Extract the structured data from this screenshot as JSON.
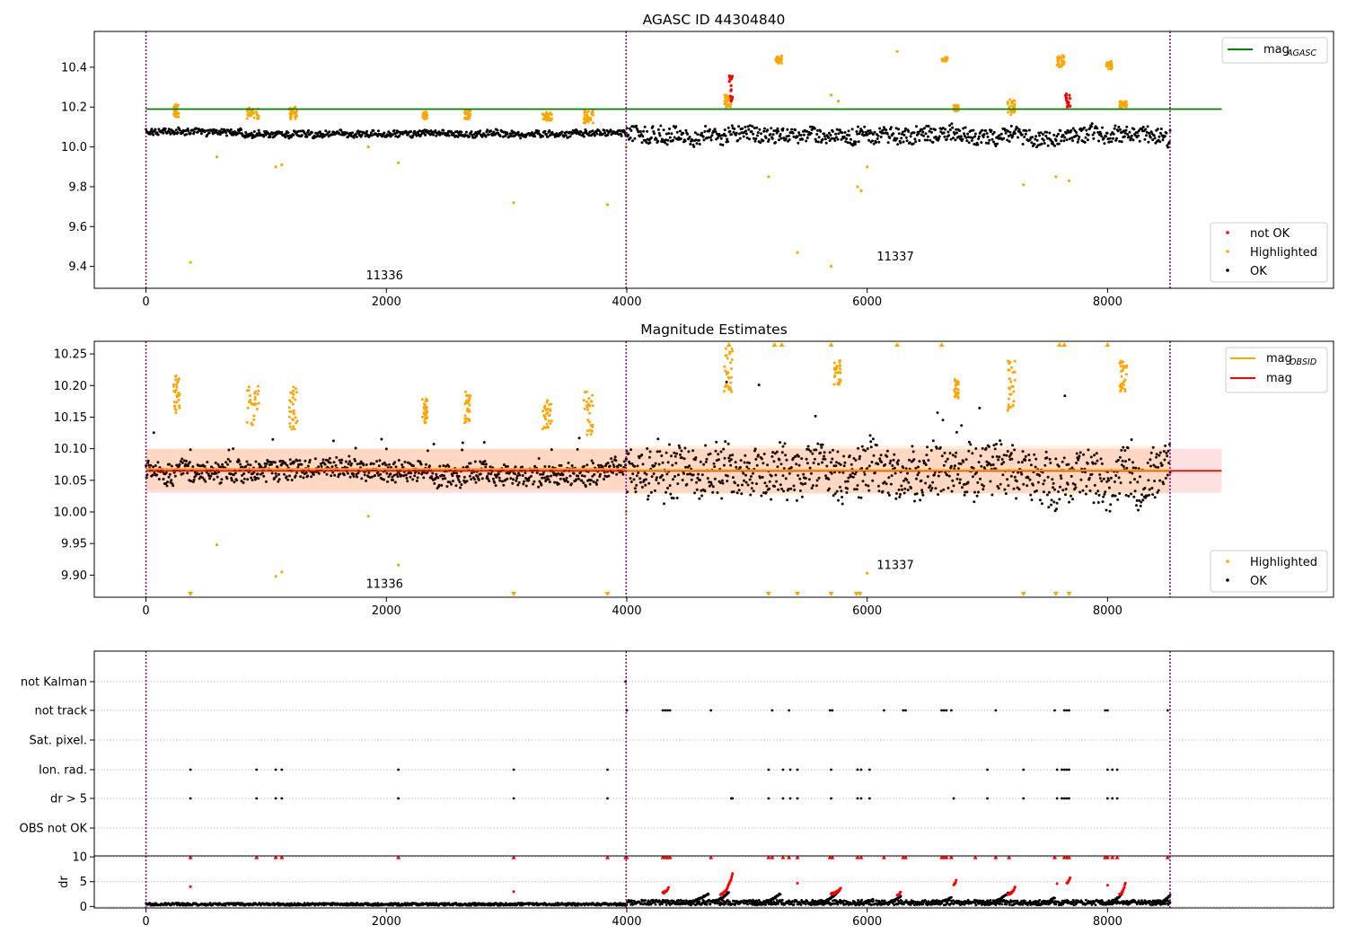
{
  "figure": {
    "panel1_title": "AGASC ID 44304840",
    "panel2_title": "Magnitude Estimates"
  },
  "colors": {
    "ok": "#000000",
    "highlighted": "#ffa500",
    "not_ok": "#ff0000",
    "agasc_line": "#008000",
    "obsid_line": "#ffa500",
    "mag_line": "#ff0000",
    "obs_boundary": "#800080"
  },
  "chart_data": [
    {
      "type": "scatter",
      "title": "AGASC ID 44304840",
      "xlabel": "",
      "ylabel": "",
      "xlim": [
        -430,
        9880
      ],
      "ylim": [
        9.29,
        10.58
      ],
      "xticks": [
        0,
        2000,
        4000,
        6000,
        8000
      ],
      "yticks": [
        9.4,
        9.6,
        9.8,
        10.0,
        10.2,
        10.4
      ],
      "ytick_labels": [
        "9.4",
        "9.6",
        "9.8",
        "10.0",
        "10.2",
        "10.4"
      ],
      "grid": false,
      "legend_lines": {
        "placement": "top-right",
        "entries": [
          {
            "label": "mag",
            "subscript": "AGASC",
            "color": "#008000"
          }
        ]
      },
      "legend_markers": {
        "placement": "bottom-right",
        "entries": [
          {
            "label": "not OK",
            "color": "#ff0000"
          },
          {
            "label": "Highlighted",
            "color": "#ffa500"
          },
          {
            "label": "OK",
            "color": "#000000"
          }
        ]
      },
      "reference_line": {
        "name": "mag_AGASC",
        "y": 10.19,
        "x_range": [
          0,
          8950
        ]
      },
      "obs_boundaries": [
        0,
        3995,
        8520
      ],
      "obsid_annotations": [
        {
          "text": "11336",
          "x": 1830,
          "y": 9.335
        },
        {
          "text": "11337",
          "x": 6080,
          "y": 9.43
        }
      ],
      "ok_segments": [
        {
          "x": [
            0,
            800
          ],
          "level": 10.075,
          "amp": 0.02
        },
        {
          "x": [
            800,
            2000
          ],
          "level": 10.065,
          "amp": 0.02
        },
        {
          "x": [
            2000,
            3995
          ],
          "level": 10.065,
          "amp": 0.02
        },
        {
          "x": [
            3995,
            5300
          ],
          "level": 10.06,
          "amp": 0.05
        },
        {
          "x": [
            5300,
            7200
          ],
          "level": 10.06,
          "amp": 0.05
        },
        {
          "x": [
            7200,
            8520
          ],
          "level": 10.06,
          "amp": 0.05
        }
      ],
      "highlighted_clusters": [
        {
          "x": [
            230,
            280
          ],
          "y": [
            10.15,
            10.22
          ]
        },
        {
          "x": [
            840,
            940
          ],
          "y": [
            10.14,
            10.2
          ]
        },
        {
          "x": [
            1190,
            1260
          ],
          "y": [
            10.14,
            10.2
          ]
        },
        {
          "x": [
            2300,
            2340
          ],
          "y": [
            10.14,
            10.18
          ]
        },
        {
          "x": [
            2650,
            2700
          ],
          "y": [
            10.14,
            10.19
          ]
        },
        {
          "x": [
            3300,
            3380
          ],
          "y": [
            10.13,
            10.18
          ]
        },
        {
          "x": [
            3640,
            3720
          ],
          "y": [
            10.12,
            10.19
          ]
        },
        {
          "x": [
            4810,
            4880
          ],
          "y": [
            10.2,
            10.26
          ]
        },
        {
          "x": [
            5240,
            5290
          ],
          "y": [
            10.42,
            10.46
          ]
        },
        {
          "x": [
            6620,
            6670
          ],
          "y": [
            10.43,
            10.45
          ]
        },
        {
          "x": [
            6720,
            6760
          ],
          "y": [
            10.18,
            10.21
          ]
        },
        {
          "x": [
            7170,
            7230
          ],
          "y": [
            10.16,
            10.24
          ]
        },
        {
          "x": [
            7580,
            7640
          ],
          "y": [
            10.4,
            10.46
          ]
        },
        {
          "x": [
            7990,
            8040
          ],
          "y": [
            10.39,
            10.43
          ]
        },
        {
          "x": [
            8100,
            8160
          ],
          "y": [
            10.2,
            10.23
          ]
        }
      ],
      "highlighted_points": [
        {
          "x": 370,
          "y": 9.42
        },
        {
          "x": 590,
          "y": 9.95
        },
        {
          "x": 1080,
          "y": 9.9
        },
        {
          "x": 1130,
          "y": 9.91
        },
        {
          "x": 1850,
          "y": 10.0
        },
        {
          "x": 2100,
          "y": 9.92
        },
        {
          "x": 3060,
          "y": 9.72
        },
        {
          "x": 3840,
          "y": 9.71
        },
        {
          "x": 3995,
          "y": 10.0
        },
        {
          "x": 5180,
          "y": 9.85
        },
        {
          "x": 5420,
          "y": 9.47
        },
        {
          "x": 5700,
          "y": 10.26
        },
        {
          "x": 5700,
          "y": 9.4
        },
        {
          "x": 5760,
          "y": 10.23
        },
        {
          "x": 5920,
          "y": 9.8
        },
        {
          "x": 5950,
          "y": 9.78
        },
        {
          "x": 6000,
          "y": 9.9
        },
        {
          "x": 6250,
          "y": 10.48
        },
        {
          "x": 7300,
          "y": 9.81
        },
        {
          "x": 7570,
          "y": 9.85
        },
        {
          "x": 7680,
          "y": 9.83
        }
      ],
      "not_ok_clusters": [
        {
          "x": [
            4850,
            4880
          ],
          "y": [
            10.22,
            10.37
          ]
        },
        {
          "x": [
            7650,
            7690
          ],
          "y": [
            10.2,
            10.27
          ]
        }
      ]
    },
    {
      "type": "scatter",
      "title": "Magnitude Estimates",
      "xlabel": "",
      "ylabel": "",
      "xlim": [
        -430,
        9880
      ],
      "ylim": [
        9.865,
        10.27
      ],
      "xticks": [
        0,
        2000,
        4000,
        6000,
        8000
      ],
      "yticks": [
        9.9,
        9.95,
        10.0,
        10.05,
        10.1,
        10.15,
        10.2,
        10.25
      ],
      "ytick_labels": [
        "9.90",
        "9.95",
        "10.00",
        "10.05",
        "10.10",
        "10.15",
        "10.20",
        "10.25"
      ],
      "grid": false,
      "legend_lines": {
        "placement": "top-right",
        "entries": [
          {
            "label": "mag",
            "subscript": "OBSID",
            "color": "#ffa500"
          },
          {
            "label": "mag",
            "subscript": "",
            "color": "#ff0000"
          }
        ]
      },
      "legend_markers": {
        "placement": "bottom-right",
        "entries": [
          {
            "label": "Highlighted",
            "color": "#ffa500"
          },
          {
            "label": "OK",
            "color": "#000000"
          }
        ]
      },
      "mag_line": {
        "y": 10.065,
        "band": [
          10.03,
          10.1
        ],
        "x_range": [
          0,
          8950
        ],
        "color": "#ff0000"
      },
      "obsid_lines": [
        {
          "x_range": [
            0,
            3995
          ],
          "y": 10.068,
          "band": [
            10.035,
            10.1
          ]
        },
        {
          "x_range": [
            3995,
            8520
          ],
          "y": 10.066,
          "band": [
            10.028,
            10.105
          ]
        }
      ],
      "obs_boundaries": [
        0,
        3995,
        8520
      ],
      "obsid_annotations": [
        {
          "text": "11336",
          "x": 1830,
          "y": 9.88
        },
        {
          "text": "11337",
          "x": 6080,
          "y": 9.91
        }
      ],
      "ok_segments": [
        {
          "x": [
            0,
            800
          ],
          "level": 10.065,
          "amp": 0.02
        },
        {
          "x": [
            800,
            2000
          ],
          "level": 10.065,
          "amp": 0.02
        },
        {
          "x": [
            2000,
            3995
          ],
          "level": 10.06,
          "amp": 0.02
        },
        {
          "x": [
            3995,
            5300
          ],
          "level": 10.06,
          "amp": 0.05
        },
        {
          "x": [
            5300,
            7200
          ],
          "level": 10.06,
          "amp": 0.05
        },
        {
          "x": [
            7200,
            8520
          ],
          "level": 10.06,
          "amp": 0.05
        }
      ],
      "highlighted_clusters": [
        {
          "x": [
            230,
            280
          ],
          "y": [
            10.15,
            10.22
          ]
        },
        {
          "x": [
            840,
            940
          ],
          "y": [
            10.13,
            10.2
          ]
        },
        {
          "x": [
            1190,
            1260
          ],
          "y": [
            10.13,
            10.2
          ]
        },
        {
          "x": [
            2300,
            2340
          ],
          "y": [
            10.14,
            10.18
          ]
        },
        {
          "x": [
            2650,
            2700
          ],
          "y": [
            10.14,
            10.19
          ]
        },
        {
          "x": [
            3300,
            3380
          ],
          "y": [
            10.13,
            10.18
          ]
        },
        {
          "x": [
            3640,
            3720
          ],
          "y": [
            10.12,
            10.19
          ]
        },
        {
          "x": [
            4810,
            4880
          ],
          "y": [
            10.19,
            10.26
          ]
        },
        {
          "x": [
            5720,
            5780
          ],
          "y": [
            10.2,
            10.24
          ]
        },
        {
          "x": [
            6720,
            6760
          ],
          "y": [
            10.18,
            10.21
          ]
        },
        {
          "x": [
            7170,
            7230
          ],
          "y": [
            10.16,
            10.24
          ]
        },
        {
          "x": [
            8100,
            8160
          ],
          "y": [
            10.19,
            10.24
          ]
        }
      ],
      "highlighted_points": [
        {
          "x": 590,
          "y": 9.948
        },
        {
          "x": 1080,
          "y": 9.898
        },
        {
          "x": 1130,
          "y": 9.905
        },
        {
          "x": 1850,
          "y": 9.993
        },
        {
          "x": 2100,
          "y": 9.916
        },
        {
          "x": 3995,
          "y": 10.0
        },
        {
          "x": 6000,
          "y": 9.903
        }
      ],
      "highlighted_offscale_top_x": [
        4850,
        5230,
        5290,
        5700,
        6250,
        6620,
        7600,
        7640,
        8000
      ],
      "highlighted_offscale_bottom_x": [
        370,
        3060,
        3840,
        5180,
        5420,
        5700,
        5910,
        5940,
        7300,
        7570,
        7680
      ]
    },
    {
      "type": "scatter",
      "title": "",
      "xlabel": "",
      "ylabel": "",
      "xlim": [
        -430,
        9880
      ],
      "categories": [
        "not Kalman",
        "not track",
        "Sat. pixel.",
        "Ion. rad.",
        "dr > 5",
        "OBS not OK"
      ],
      "grid": true,
      "obs_boundaries": [
        0,
        3995,
        8520
      ],
      "flags": {
        "not Kalman": [
          3990
        ],
        "not track": [
          4000,
          4300,
          4320,
          4340,
          4360,
          4700,
          5210,
          5350,
          5690,
          5710,
          6140,
          6300,
          6320,
          6620,
          6640,
          6660,
          6700,
          7070,
          7560,
          7640,
          7660,
          7680,
          7980,
          8000,
          8500
        ],
        "Sat. pixel.": [],
        "Ion. rad.": [
          370,
          920,
          1080,
          1130,
          2100,
          3060,
          3840,
          5180,
          5300,
          5360,
          5420,
          5700,
          5920,
          5950,
          6020,
          7000,
          7300,
          7580,
          7620,
          7640,
          7660,
          7680,
          8000,
          8040,
          8080
        ],
        "dr > 5": [
          370,
          920,
          1080,
          1130,
          2100,
          3060,
          3840,
          4870,
          4880,
          5180,
          5300,
          5360,
          5420,
          5700,
          5920,
          5950,
          6020,
          6720,
          7000,
          7300,
          7580,
          7620,
          7640,
          7660,
          7680,
          8000,
          8040,
          8080
        ],
        "OBS not OK": []
      }
    },
    {
      "type": "scatter",
      "title": "",
      "xlabel": "",
      "ylabel": "dr",
      "xlim": [
        -430,
        9880
      ],
      "ylim": [
        -0.3,
        10.2
      ],
      "xticks": [
        0,
        2000,
        4000,
        6000,
        8000
      ],
      "yticks": [
        0,
        5,
        10
      ],
      "ytick_labels": [
        "0",
        "5",
        "10"
      ],
      "grid": true,
      "obs_boundaries": [
        0,
        3995,
        8520
      ],
      "baseline_segments": [
        {
          "x": [
            0,
            3995
          ],
          "level": 0.45,
          "amp": 0.25
        },
        {
          "x": [
            3995,
            8520
          ],
          "level": 0.8,
          "amp": 0.5
        }
      ],
      "ramps_ok": [
        {
          "x": [
            4400,
            4680
          ],
          "y": [
            0.5,
            2.5
          ]
        },
        {
          "x": [
            4700,
            4850
          ],
          "y": [
            1.0,
            3.0
          ]
        },
        {
          "x": [
            5050,
            5280
          ],
          "y": [
            0.4,
            2.6
          ]
        },
        {
          "x": [
            5550,
            5760
          ],
          "y": [
            0.5,
            3.0
          ]
        },
        {
          "x": [
            5900,
            6050
          ],
          "y": [
            0.4,
            1.5
          ]
        },
        {
          "x": [
            6100,
            6280
          ],
          "y": [
            0.5,
            2.0
          ]
        },
        {
          "x": [
            6500,
            6700
          ],
          "y": [
            0.5,
            1.8
          ]
        },
        {
          "x": [
            6950,
            7180
          ],
          "y": [
            0.4,
            2.8
          ]
        },
        {
          "x": [
            7400,
            7560
          ],
          "y": [
            0.4,
            1.8
          ]
        },
        {
          "x": [
            7950,
            8120
          ],
          "y": [
            0.5,
            2.5
          ]
        },
        {
          "x": [
            8380,
            8520
          ],
          "y": [
            0.5,
            2.2
          ]
        }
      ],
      "ramps_red": [
        {
          "x": [
            4300,
            4350
          ],
          "y": [
            2.8,
            3.8
          ]
        },
        {
          "x": [
            4780,
            4880
          ],
          "y": [
            2.5,
            6.5
          ]
        },
        {
          "x": [
            5700,
            5780
          ],
          "y": [
            2.6,
            3.6
          ]
        },
        {
          "x": [
            6250,
            6280
          ],
          "y": [
            2.2,
            3.0
          ]
        },
        {
          "x": [
            6720,
            6740
          ],
          "y": [
            4.5,
            5.2
          ]
        },
        {
          "x": [
            7170,
            7230
          ],
          "y": [
            2.5,
            3.8
          ]
        },
        {
          "x": [
            7660,
            7690
          ],
          "y": [
            4.8,
            5.8
          ]
        },
        {
          "x": [
            8100,
            8150
          ],
          "y": [
            2.5,
            4.8
          ]
        }
      ],
      "red_points": [
        {
          "x": 370,
          "y": 4.0
        },
        {
          "x": 3060,
          "y": 3.0
        },
        {
          "x": 5420,
          "y": 4.7
        },
        {
          "x": 7580,
          "y": 4.6
        },
        {
          "x": 8000,
          "y": 4.3
        }
      ],
      "red_capped_x": [
        370,
        920,
        1080,
        1130,
        2100,
        3060,
        3840,
        3990,
        4000,
        4300,
        4320,
        4340,
        4360,
        4700,
        5180,
        5210,
        5300,
        5350,
        5420,
        5690,
        5710,
        5920,
        5950,
        6140,
        6300,
        6320,
        6620,
        6640,
        6660,
        6700,
        6900,
        7070,
        7180,
        7560,
        7640,
        7660,
        7680,
        7980,
        8000,
        8040,
        8080,
        8500
      ]
    }
  ]
}
